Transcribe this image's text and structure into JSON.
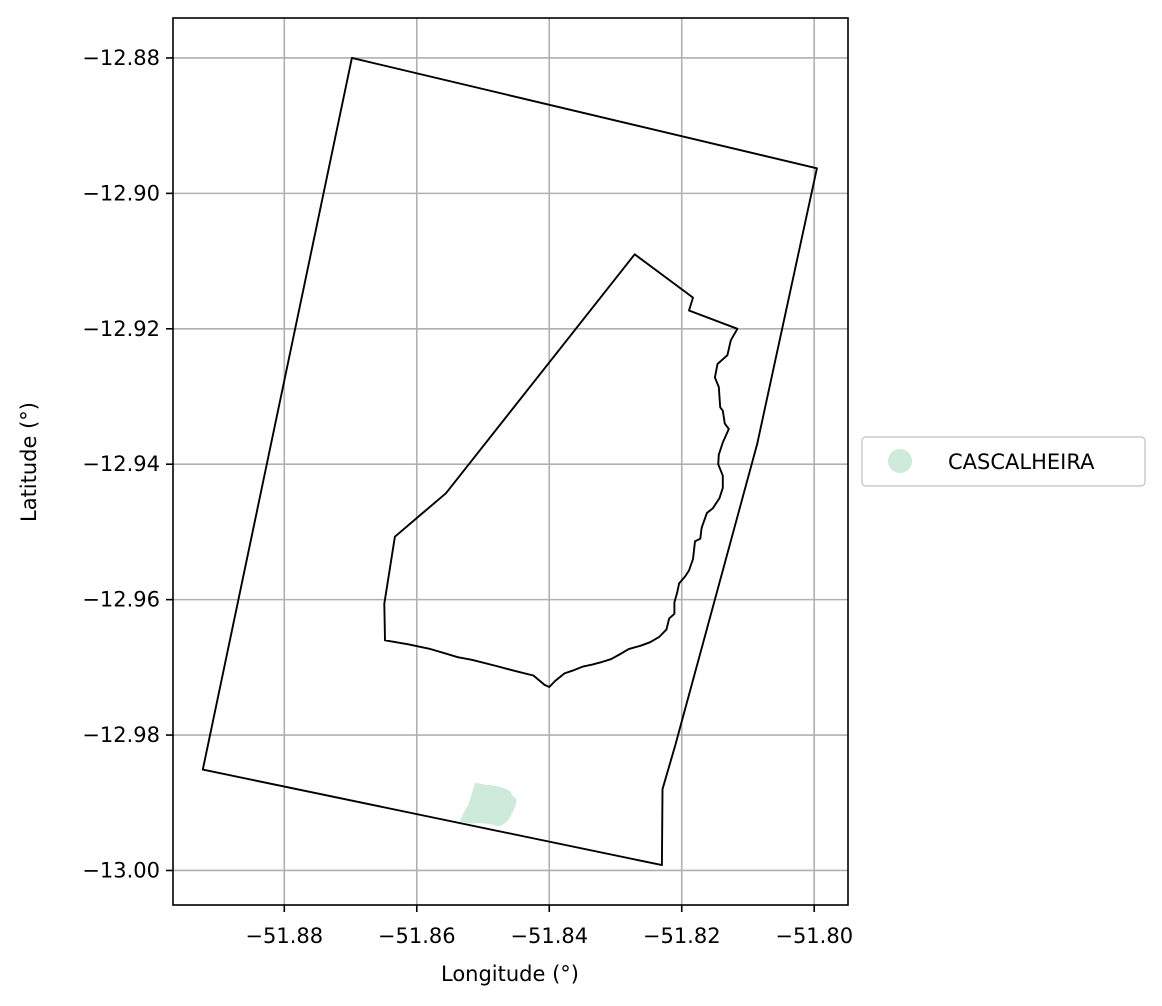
{
  "chart_data": {
    "type": "map",
    "xlabel": "Longitude (°)",
    "ylabel": "Latitude (°)",
    "xlim": [
      -51.8968,
      -51.7949
    ],
    "ylim": [
      -13.0051,
      -12.8741
    ],
    "grid": true,
    "x_ticks": [
      -51.88,
      -51.86,
      -51.84,
      -51.82,
      -51.8
    ],
    "x_tick_labels": [
      "−51.88",
      "−51.86",
      "−51.84",
      "−51.82",
      "−51.80"
    ],
    "y_ticks": [
      -12.88,
      -12.9,
      -12.92,
      -12.94,
      -12.96,
      -12.98,
      -13.0
    ],
    "y_tick_labels": [
      "−12.88",
      "−12.90",
      "−12.92",
      "−12.94",
      "−12.96",
      "−12.98",
      "−13.00"
    ],
    "outer_boundary": [
      [
        -51.8698,
        -12.88
      ],
      [
        -51.7996,
        -12.8963
      ],
      [
        -51.8086,
        -12.937
      ],
      [
        -51.821,
        -12.9816
      ],
      [
        -51.8229,
        -12.988
      ],
      [
        -51.823,
        -12.9992
      ],
      [
        -51.8923,
        -12.9851
      ],
      [
        -51.8698,
        -12.88
      ]
    ],
    "inner_boundary": [
      [
        -51.8271,
        -12.909
      ],
      [
        -51.8183,
        -12.9154
      ],
      [
        -51.8189,
        -12.9173
      ],
      [
        -51.8116,
        -12.92
      ],
      [
        -51.8126,
        -12.9217
      ],
      [
        -51.8131,
        -12.9239
      ],
      [
        -51.8146,
        -12.9252
      ],
      [
        -51.815,
        -12.9272
      ],
      [
        -51.8144,
        -12.9286
      ],
      [
        -51.8142,
        -12.9316
      ],
      [
        -51.8138,
        -12.9321
      ],
      [
        -51.8135,
        -12.934
      ],
      [
        -51.8129,
        -12.9348
      ],
      [
        -51.8138,
        -12.9368
      ],
      [
        -51.8144,
        -12.9386
      ],
      [
        -51.8145,
        -12.94
      ],
      [
        -51.8138,
        -12.9417
      ],
      [
        -51.8138,
        -12.9435
      ],
      [
        -51.8143,
        -12.945
      ],
      [
        -51.8153,
        -12.9465
      ],
      [
        -51.8162,
        -12.9472
      ],
      [
        -51.817,
        -12.9494
      ],
      [
        -51.8172,
        -12.951
      ],
      [
        -51.818,
        -12.9514
      ],
      [
        -51.8183,
        -12.954
      ],
      [
        -51.8189,
        -12.9557
      ],
      [
        -51.8195,
        -12.9566
      ],
      [
        -51.8204,
        -12.9576
      ],
      [
        -51.8207,
        -12.959
      ],
      [
        -51.8211,
        -12.9604
      ],
      [
        -51.8211,
        -12.9621
      ],
      [
        -51.8219,
        -12.9628
      ],
      [
        -51.8223,
        -12.9644
      ],
      [
        -51.8234,
        -12.9655
      ],
      [
        -51.8248,
        -12.9663
      ],
      [
        -51.8262,
        -12.9668
      ],
      [
        -51.828,
        -12.9673
      ],
      [
        -51.8294,
        -12.9681
      ],
      [
        -51.8307,
        -12.9688
      ],
      [
        -51.832,
        -12.9692
      ],
      [
        -51.8335,
        -12.9696
      ],
      [
        -51.835,
        -12.9699
      ],
      [
        -51.8365,
        -12.9705
      ],
      [
        -51.8377,
        -12.9709
      ],
      [
        -51.8391,
        -12.972
      ],
      [
        -51.84,
        -12.9729
      ],
      [
        -51.8407,
        -12.9726
      ],
      [
        -51.8424,
        -12.9712
      ],
      [
        -51.8445,
        -12.9707
      ],
      [
        -51.848,
        -12.9698
      ],
      [
        -51.8516,
        -12.9689
      ],
      [
        -51.8538,
        -12.9685
      ],
      [
        -51.8555,
        -12.968
      ],
      [
        -51.8579,
        -12.9673
      ],
      [
        -51.8613,
        -12.9666
      ],
      [
        -51.8648,
        -12.966
      ],
      [
        -51.8649,
        -12.9606
      ],
      [
        -51.8633,
        -12.9507
      ],
      [
        -51.8591,
        -12.9472
      ],
      [
        -51.8556,
        -12.9443
      ],
      [
        -51.8271,
        -12.909
      ]
    ],
    "series": [
      {
        "name": "CASCALHEIRA",
        "color": "#cdeadb",
        "polygon": [
          [
            -51.8511,
            -12.9871
          ],
          [
            -51.8497,
            -12.9874
          ],
          [
            -51.8486,
            -12.9875
          ],
          [
            -51.8475,
            -12.9877
          ],
          [
            -51.8466,
            -12.988
          ],
          [
            -51.846,
            -12.9883
          ],
          [
            -51.8456,
            -12.989
          ],
          [
            -51.845,
            -12.9895
          ],
          [
            -51.8452,
            -12.9905
          ],
          [
            -51.8455,
            -12.9912
          ],
          [
            -51.8458,
            -12.9917
          ],
          [
            -51.8462,
            -12.9925
          ],
          [
            -51.8469,
            -12.9931
          ],
          [
            -51.8477,
            -12.9934
          ],
          [
            -51.8489,
            -12.9931
          ],
          [
            -51.8503,
            -12.9929
          ],
          [
            -51.8519,
            -12.993
          ],
          [
            -51.8534,
            -12.9927
          ],
          [
            -51.8528,
            -12.9914
          ],
          [
            -51.8522,
            -12.9904
          ],
          [
            -51.8518,
            -12.9893
          ],
          [
            -51.8514,
            -12.988
          ],
          [
            -51.8511,
            -12.9871
          ]
        ]
      }
    ]
  }
}
